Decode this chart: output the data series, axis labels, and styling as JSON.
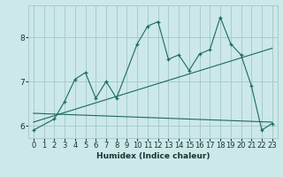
{
  "xlabel": "Humidex (Indice chaleur)",
  "ylabel": "",
  "bg_color": "#cce8e8",
  "grid_color": "#aacccc",
  "line_color": "#1a6b5a",
  "xlim": [
    -0.5,
    23.5
  ],
  "ylim": [
    5.72,
    8.72
  ],
  "yticks": [
    6,
    7,
    8
  ],
  "xticks": [
    0,
    1,
    2,
    3,
    4,
    5,
    6,
    7,
    8,
    9,
    10,
    11,
    12,
    13,
    14,
    15,
    16,
    17,
    18,
    19,
    20,
    21,
    22,
    23
  ],
  "main_x": [
    0,
    2,
    3,
    4,
    5,
    6,
    7,
    8,
    10,
    11,
    12,
    13,
    14,
    15,
    16,
    17,
    18,
    19,
    20,
    21,
    22,
    23
  ],
  "main_y": [
    5.9,
    6.15,
    6.55,
    7.05,
    7.2,
    6.62,
    7.0,
    6.62,
    7.85,
    8.25,
    8.35,
    7.5,
    7.6,
    7.25,
    7.62,
    7.72,
    8.45,
    7.85,
    7.6,
    6.9,
    5.9,
    6.05
  ],
  "line2_x": [
    0,
    23
  ],
  "line2_y": [
    6.08,
    7.75
  ],
  "line3_x": [
    0,
    23
  ],
  "line3_y": [
    6.28,
    6.08
  ],
  "font_size_label": 6.5,
  "font_size_tick": 6.0
}
